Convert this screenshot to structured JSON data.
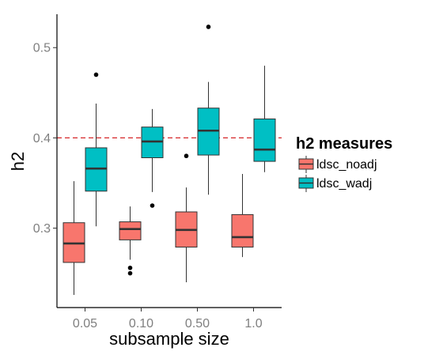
{
  "chart_data": {
    "type": "boxplot",
    "xlabel": "subsample size",
    "ylabel": "h2",
    "categories": [
      "0.05",
      "0.10",
      "0.50",
      "1.0"
    ],
    "y_ticks": [
      "0.3",
      "0.4",
      "0.5"
    ],
    "y_tick_values": [
      0.3,
      0.4,
      0.5
    ],
    "ylim": [
      0.212,
      0.537
    ],
    "reference_line": {
      "y": 0.4,
      "color": "#d62728",
      "style": "dashed"
    },
    "grid": false,
    "legend": {
      "title": "h2 measures",
      "position": "right"
    },
    "series": [
      {
        "name": "ldsc_noadj",
        "color": "#F8766D",
        "boxes": [
          {
            "whisker_low": 0.226,
            "q1": 0.262,
            "median": 0.283,
            "q3": 0.306,
            "whisker_high": 0.352,
            "outliers": []
          },
          {
            "whisker_low": 0.265,
            "q1": 0.287,
            "median": 0.299,
            "q3": 0.307,
            "whisker_high": 0.324,
            "outliers": [
              0.256,
              0.25
            ]
          },
          {
            "whisker_low": 0.24,
            "q1": 0.279,
            "median": 0.298,
            "q3": 0.318,
            "whisker_high": 0.345,
            "outliers": [
              0.38
            ]
          },
          {
            "whisker_low": 0.268,
            "q1": 0.279,
            "median": 0.29,
            "q3": 0.315,
            "whisker_high": 0.36,
            "outliers": []
          }
        ]
      },
      {
        "name": "ldsc_wadj",
        "color": "#00BFC4",
        "boxes": [
          {
            "whisker_low": 0.302,
            "q1": 0.341,
            "median": 0.366,
            "q3": 0.389,
            "whisker_high": 0.438,
            "outliers": [
              0.47
            ]
          },
          {
            "whisker_low": 0.34,
            "q1": 0.378,
            "median": 0.396,
            "q3": 0.412,
            "whisker_high": 0.432,
            "outliers": [
              0.325
            ]
          },
          {
            "whisker_low": 0.337,
            "q1": 0.381,
            "median": 0.408,
            "q3": 0.433,
            "whisker_high": 0.462,
            "outliers": [
              0.523
            ]
          },
          {
            "whisker_low": 0.362,
            "q1": 0.374,
            "median": 0.387,
            "q3": 0.421,
            "whisker_high": 0.48,
            "outliers": []
          }
        ]
      }
    ]
  }
}
